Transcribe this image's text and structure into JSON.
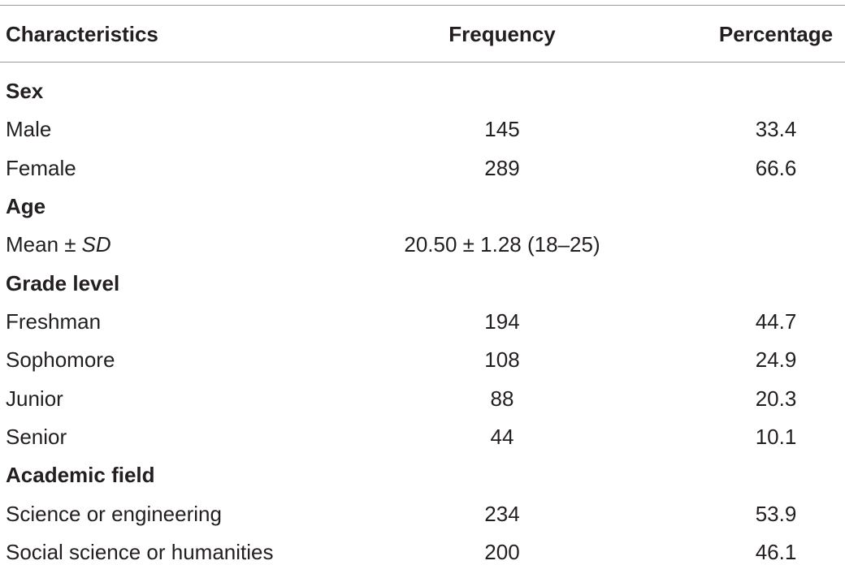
{
  "table": {
    "header": [
      "Characteristics",
      "Frequency",
      "Percentage"
    ],
    "sections": [
      {
        "title": "Sex",
        "rows": [
          {
            "label": "Male",
            "frequency": 145,
            "percentage": 33.4
          },
          {
            "label": "Female",
            "frequency": 289,
            "percentage": 66.6
          }
        ]
      },
      {
        "title": "Age",
        "rows": [
          {
            "label": "Mean ±",
            "label_italic": "SD",
            "frequency": "20.50 ± 1.28 (18–25)"
          }
        ]
      },
      {
        "title": "Grade level",
        "rows": [
          {
            "label": "Freshman",
            "frequency": 194,
            "percentage": 44.7
          },
          {
            "label": "Sophomore",
            "frequency": 108,
            "percentage": 24.9
          },
          {
            "label": "Junior",
            "frequency": 88,
            "percentage": 20.3
          },
          {
            "label": "Senior",
            "frequency": 44,
            "percentage": 10.1
          }
        ]
      },
      {
        "title": "Academic field",
        "rows": [
          {
            "label": "Science or engineering",
            "frequency": 234,
            "percentage": 53.9
          },
          {
            "label": "Social science or humanities",
            "frequency": 200,
            "percentage": 46.1
          }
        ]
      }
    ]
  }
}
